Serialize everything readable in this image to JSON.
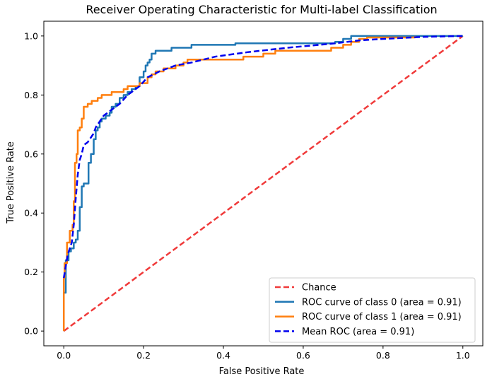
{
  "chart_data": {
    "type": "line",
    "title": "Receiver Operating Characteristic for Multi-label Classification",
    "xlabel": "False Positive Rate",
    "ylabel": "True Positive Rate",
    "xlim": [
      -0.05,
      1.05
    ],
    "ylim": [
      -0.05,
      1.05
    ],
    "xticks": [
      0.0,
      0.2,
      0.4,
      0.6,
      0.8,
      1.0
    ],
    "yticks": [
      0.0,
      0.2,
      0.4,
      0.6,
      0.8,
      1.0
    ],
    "xtick_labels": [
      "0.0",
      "0.2",
      "0.4",
      "0.6",
      "0.8",
      "1.0"
    ],
    "ytick_labels": [
      "0.0",
      "0.2",
      "0.4",
      "0.6",
      "0.8",
      "1.0"
    ],
    "grid": false,
    "legend_position": "lower-right",
    "series": [
      {
        "name": "Chance",
        "color": "#f03a3a",
        "style": "dashed",
        "points": [
          [
            0,
            0
          ],
          [
            1,
            1
          ]
        ]
      },
      {
        "name": "ROC curve of class 0 (area = 0.91)",
        "color": "#1f77b4",
        "style": "solid",
        "points": [
          [
            0,
            0
          ],
          [
            0,
            0.13
          ],
          [
            0.005,
            0.13
          ],
          [
            0.005,
            0.24
          ],
          [
            0.012,
            0.24
          ],
          [
            0.012,
            0.27
          ],
          [
            0.018,
            0.27
          ],
          [
            0.018,
            0.28
          ],
          [
            0.025,
            0.28
          ],
          [
            0.025,
            0.3
          ],
          [
            0.03,
            0.3
          ],
          [
            0.03,
            0.31
          ],
          [
            0.035,
            0.31
          ],
          [
            0.035,
            0.34
          ],
          [
            0.04,
            0.34
          ],
          [
            0.04,
            0.42
          ],
          [
            0.045,
            0.42
          ],
          [
            0.045,
            0.49
          ],
          [
            0.05,
            0.49
          ],
          [
            0.05,
            0.5
          ],
          [
            0.062,
            0.5
          ],
          [
            0.062,
            0.57
          ],
          [
            0.068,
            0.57
          ],
          [
            0.068,
            0.6
          ],
          [
            0.075,
            0.6
          ],
          [
            0.075,
            0.65
          ],
          [
            0.08,
            0.65
          ],
          [
            0.08,
            0.68
          ],
          [
            0.085,
            0.68
          ],
          [
            0.085,
            0.69
          ],
          [
            0.09,
            0.69
          ],
          [
            0.09,
            0.71
          ],
          [
            0.095,
            0.71
          ],
          [
            0.095,
            0.72
          ],
          [
            0.105,
            0.72
          ],
          [
            0.105,
            0.73
          ],
          [
            0.115,
            0.73
          ],
          [
            0.115,
            0.74
          ],
          [
            0.12,
            0.74
          ],
          [
            0.12,
            0.76
          ],
          [
            0.13,
            0.76
          ],
          [
            0.13,
            0.77
          ],
          [
            0.14,
            0.77
          ],
          [
            0.14,
            0.79
          ],
          [
            0.15,
            0.79
          ],
          [
            0.15,
            0.8
          ],
          [
            0.16,
            0.8
          ],
          [
            0.16,
            0.81
          ],
          [
            0.17,
            0.81
          ],
          [
            0.17,
            0.82
          ],
          [
            0.18,
            0.82
          ],
          [
            0.18,
            0.83
          ],
          [
            0.19,
            0.83
          ],
          [
            0.19,
            0.86
          ],
          [
            0.2,
            0.86
          ],
          [
            0.2,
            0.88
          ],
          [
            0.205,
            0.88
          ],
          [
            0.205,
            0.9
          ],
          [
            0.21,
            0.9
          ],
          [
            0.21,
            0.91
          ],
          [
            0.215,
            0.91
          ],
          [
            0.215,
            0.92
          ],
          [
            0.22,
            0.92
          ],
          [
            0.22,
            0.94
          ],
          [
            0.23,
            0.94
          ],
          [
            0.23,
            0.95
          ],
          [
            0.27,
            0.95
          ],
          [
            0.27,
            0.96
          ],
          [
            0.32,
            0.96
          ],
          [
            0.32,
            0.97
          ],
          [
            0.43,
            0.97
          ],
          [
            0.43,
            0.975
          ],
          [
            0.68,
            0.975
          ],
          [
            0.68,
            0.98
          ],
          [
            0.7,
            0.98
          ],
          [
            0.7,
            0.985
          ],
          [
            0.7,
            0.985
          ],
          [
            0.7,
            0.99
          ],
          [
            0.72,
            0.99
          ],
          [
            0.72,
            1.0
          ],
          [
            1,
            1.0
          ]
        ]
      },
      {
        "name": "ROC curve of class 1 (area = 0.91)",
        "color": "#ff7f0e",
        "style": "solid",
        "points": [
          [
            0,
            0
          ],
          [
            0,
            0.18
          ],
          [
            0.002,
            0.18
          ],
          [
            0.002,
            0.23
          ],
          [
            0.008,
            0.23
          ],
          [
            0.008,
            0.3
          ],
          [
            0.015,
            0.3
          ],
          [
            0.015,
            0.34
          ],
          [
            0.022,
            0.34
          ],
          [
            0.022,
            0.36
          ],
          [
            0.025,
            0.36
          ],
          [
            0.025,
            0.44
          ],
          [
            0.028,
            0.44
          ],
          [
            0.028,
            0.57
          ],
          [
            0.032,
            0.57
          ],
          [
            0.032,
            0.6
          ],
          [
            0.035,
            0.6
          ],
          [
            0.035,
            0.68
          ],
          [
            0.04,
            0.68
          ],
          [
            0.04,
            0.69
          ],
          [
            0.045,
            0.69
          ],
          [
            0.045,
            0.72
          ],
          [
            0.05,
            0.72
          ],
          [
            0.05,
            0.76
          ],
          [
            0.06,
            0.76
          ],
          [
            0.06,
            0.77
          ],
          [
            0.07,
            0.77
          ],
          [
            0.07,
            0.78
          ],
          [
            0.085,
            0.78
          ],
          [
            0.085,
            0.79
          ],
          [
            0.095,
            0.79
          ],
          [
            0.095,
            0.8
          ],
          [
            0.12,
            0.8
          ],
          [
            0.12,
            0.81
          ],
          [
            0.15,
            0.81
          ],
          [
            0.15,
            0.82
          ],
          [
            0.16,
            0.82
          ],
          [
            0.16,
            0.83
          ],
          [
            0.19,
            0.83
          ],
          [
            0.19,
            0.84
          ],
          [
            0.21,
            0.84
          ],
          [
            0.21,
            0.86
          ],
          [
            0.22,
            0.86
          ],
          [
            0.22,
            0.87
          ],
          [
            0.23,
            0.87
          ],
          [
            0.23,
            0.88
          ],
          [
            0.25,
            0.88
          ],
          [
            0.25,
            0.89
          ],
          [
            0.28,
            0.89
          ],
          [
            0.28,
            0.9
          ],
          [
            0.3,
            0.9
          ],
          [
            0.3,
            0.91
          ],
          [
            0.31,
            0.91
          ],
          [
            0.31,
            0.92
          ],
          [
            0.45,
            0.92
          ],
          [
            0.45,
            0.93
          ],
          [
            0.5,
            0.93
          ],
          [
            0.5,
            0.94
          ],
          [
            0.53,
            0.94
          ],
          [
            0.53,
            0.95
          ],
          [
            0.67,
            0.95
          ],
          [
            0.67,
            0.96
          ],
          [
            0.7,
            0.96
          ],
          [
            0.7,
            0.97
          ],
          [
            0.72,
            0.97
          ],
          [
            0.72,
            0.98
          ],
          [
            0.74,
            0.98
          ],
          [
            0.74,
            0.99
          ],
          [
            0.76,
            0.99
          ],
          [
            0.76,
            0.995
          ],
          [
            0.88,
            0.995
          ],
          [
            0.88,
            1.0
          ]
        ]
      },
      {
        "name": "Mean ROC (area = 0.91)",
        "color": "#0000ee",
        "style": "dashed",
        "points": [
          [
            0,
            0.18
          ],
          [
            0.01,
            0.26
          ],
          [
            0.02,
            0.3
          ],
          [
            0.025,
            0.36
          ],
          [
            0.03,
            0.45
          ],
          [
            0.035,
            0.53
          ],
          [
            0.04,
            0.58
          ],
          [
            0.045,
            0.6
          ],
          [
            0.05,
            0.63
          ],
          [
            0.06,
            0.64
          ],
          [
            0.065,
            0.65
          ],
          [
            0.07,
            0.66
          ],
          [
            0.075,
            0.67
          ],
          [
            0.08,
            0.69
          ],
          [
            0.09,
            0.71
          ],
          [
            0.1,
            0.73
          ],
          [
            0.12,
            0.75
          ],
          [
            0.14,
            0.77
          ],
          [
            0.16,
            0.8
          ],
          [
            0.19,
            0.83
          ],
          [
            0.21,
            0.86
          ],
          [
            0.24,
            0.88
          ],
          [
            0.26,
            0.89
          ],
          [
            0.28,
            0.9
          ],
          [
            0.32,
            0.91
          ],
          [
            0.38,
            0.93
          ],
          [
            0.46,
            0.945
          ],
          [
            0.56,
            0.96
          ],
          [
            0.68,
            0.975
          ],
          [
            0.74,
            0.985
          ],
          [
            0.8,
            0.99
          ],
          [
            0.9,
            0.997
          ],
          [
            1.0,
            1.0
          ]
        ]
      }
    ]
  }
}
